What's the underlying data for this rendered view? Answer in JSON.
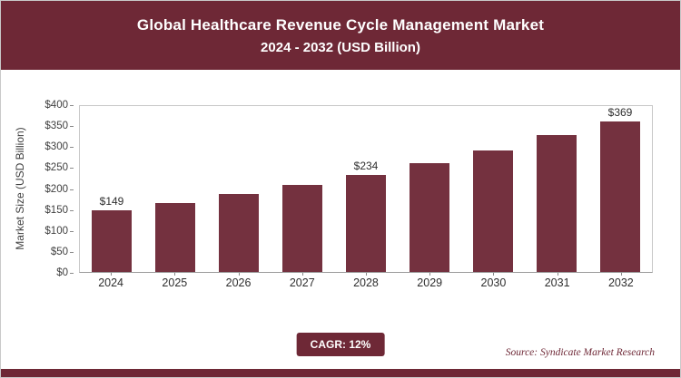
{
  "header": {
    "title_line1": "Global Healthcare Revenue Cycle Management Market",
    "title_line2": "2024 - 2032 (USD Billion)"
  },
  "footer": {
    "cagr_label": "CAGR: 12%",
    "source": "Source: Syndicate Market Research"
  },
  "colors": {
    "header_band": "#6e2836",
    "bar": "#74313f",
    "axis_text": "#3f3f3f",
    "plot_border": "#c8c8c8"
  },
  "chart_data": {
    "type": "bar",
    "title": "Global Healthcare Revenue Cycle Management Market 2024 - 2032 (USD Billion)",
    "categories": [
      "2024",
      "2025",
      "2026",
      "2027",
      "2028",
      "2029",
      "2030",
      "2031",
      "2032"
    ],
    "values": [
      149,
      167,
      187,
      209,
      234,
      262,
      294,
      329,
      369
    ],
    "data_labels": [
      "$149",
      null,
      null,
      null,
      "$234",
      null,
      null,
      null,
      "$369"
    ],
    "xlabel": "",
    "ylabel": "Market Size (USD Billion)",
    "ylim": [
      0,
      400
    ],
    "ytick_values": [
      0,
      50,
      100,
      150,
      200,
      250,
      300,
      350,
      400
    ],
    "ytick_labels": [
      "$0",
      "$50",
      "$100",
      "$150",
      "$200",
      "$250",
      "$300",
      "$350",
      "$400"
    ],
    "legend": false,
    "grid": false,
    "annotations": [
      "CAGR: 12%",
      "Source: Syndicate Market Research"
    ]
  }
}
